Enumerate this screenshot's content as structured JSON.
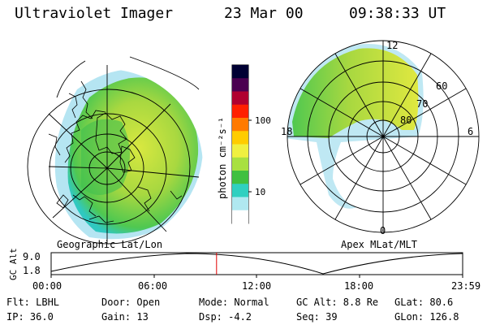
{
  "header": {
    "title": "Ultraviolet Imager",
    "date": "23 Mar 00",
    "time": "09:38:33 UT"
  },
  "colorbar": {
    "unit_label": "photon cm⁻²s⁻¹",
    "ticks": [
      "100",
      "10"
    ],
    "colors": [
      "#000033",
      "#4b0050",
      "#b00030",
      "#ff2000",
      "#ff7a00",
      "#ffcc00",
      "#f0f040",
      "#a8e040",
      "#40c040",
      "#30d0c0",
      "#b0e8f0",
      "#ffffff"
    ]
  },
  "left_panel": {
    "label": "Geographic Lat/Lon"
  },
  "right_panel": {
    "label": "Apex MLat/MLT",
    "mlt_labels": {
      "top": "12",
      "left": "18",
      "right": "6",
      "bottom": "0"
    },
    "lat_labels": [
      "60",
      "70",
      "80"
    ]
  },
  "timeline": {
    "axis_label": "GC Alt",
    "ymax": "9.0",
    "ymin": "1.8",
    "ticks": [
      "00:00",
      "06:00",
      "12:00",
      "18:00",
      "23:59"
    ],
    "current_time": "09:38:33",
    "marker_color": "#e00000"
  },
  "status": {
    "flt": "Flt: LBHL",
    "ip": "IP: 36.0",
    "door": "Door: Open",
    "gain": "Gain: 13",
    "mode": "Mode: Normal",
    "dsp": "Dsp:   -4.2",
    "gc_alt": "GC Alt: 8.8 Re",
    "seq": "Seq: 39",
    "glat": "GLat:  80.6",
    "glon": "GLon: 126.8"
  }
}
